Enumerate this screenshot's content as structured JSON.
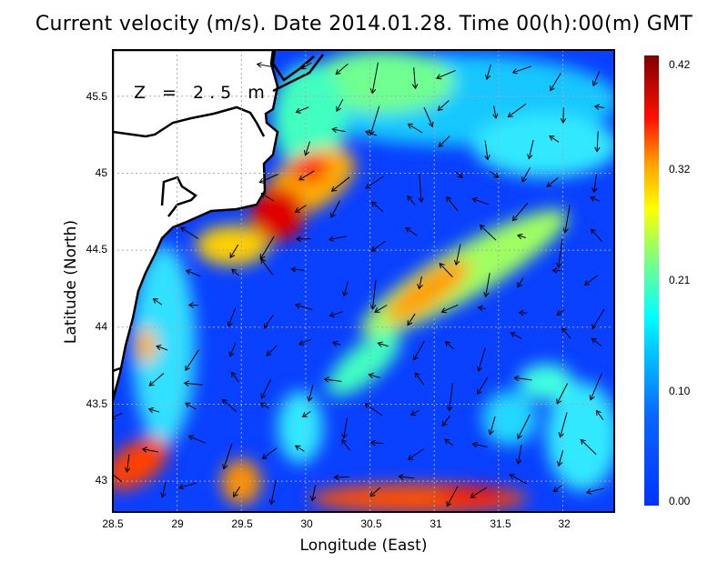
{
  "title": "Current velocity (m/s). Date 2014.01.28. Time 00(h):00(m) GMT",
  "depth_label": "Z = 2.5 m",
  "x_axis": {
    "label": "Longitude (East)",
    "ticks": [
      "28.5",
      "29",
      "29.5",
      "30",
      "30.5",
      "31",
      "31.5",
      "32"
    ],
    "range": [
      28.5,
      32.4
    ]
  },
  "y_axis": {
    "label": "Latitude (North)",
    "ticks": [
      "45.5",
      "45",
      "44.5",
      "44",
      "43.5",
      "43"
    ],
    "range": [
      42.8,
      45.8
    ]
  },
  "colorbar": {
    "ticks": [
      "0.42",
      "0.32",
      "0.21",
      "0.10",
      "0.00"
    ],
    "range": [
      0.0,
      0.42
    ],
    "colors": [
      "#0033ff",
      "#00ccff",
      "#00ffff",
      "#7fff7f",
      "#ffff00",
      "#ff8000",
      "#ff0000",
      "#800000"
    ]
  },
  "background_color": "#0a40ff",
  "grid": "dotted"
}
